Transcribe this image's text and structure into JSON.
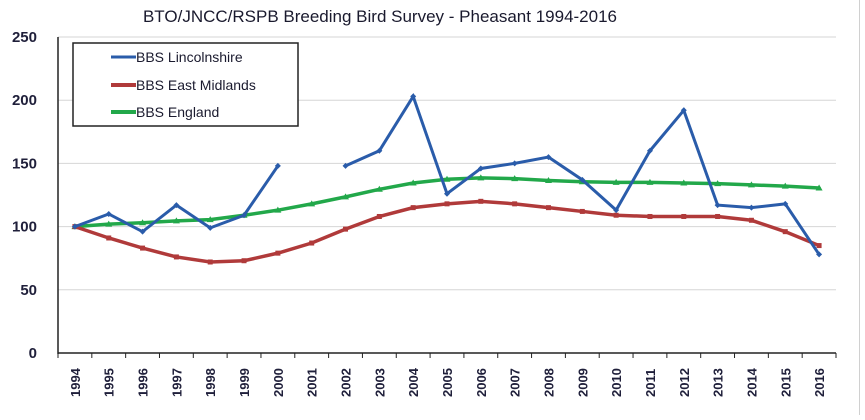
{
  "chart_data": {
    "type": "line",
    "title": "BTO/JNCC/RSPB Breeding Bird Survey - Pheasant 1994-2016",
    "xlabel": "",
    "ylabel": "",
    "ylim": [
      0,
      250
    ],
    "yticks": [
      0,
      50,
      100,
      150,
      200,
      250
    ],
    "grid": true,
    "legend_position": "top-left",
    "categories": [
      "1994",
      "1995",
      "1996",
      "1997",
      "1998",
      "1999",
      "2000",
      "2001",
      "2002",
      "2003",
      "2004",
      "2005",
      "2006",
      "2007",
      "2008",
      "2009",
      "2010",
      "2011",
      "2012",
      "2013",
      "2014",
      "2015",
      "2016"
    ],
    "series": [
      {
        "name": "BBS Lincolnshire",
        "color": "#2a5caa",
        "marker": "diamond",
        "values": [
          100,
          110,
          96,
          117,
          99,
          109,
          148,
          null,
          148,
          160,
          203,
          126,
          146,
          150,
          155,
          137,
          113,
          160,
          192,
          117,
          115,
          118,
          78
        ]
      },
      {
        "name": "BBS East Midlands",
        "color": "#b03a3a",
        "marker": "square",
        "values": [
          100,
          91,
          83,
          76,
          72,
          73,
          79,
          87,
          98,
          108,
          115,
          118,
          120,
          118,
          115,
          112,
          109,
          108,
          108,
          108,
          105,
          96,
          85
        ]
      },
      {
        "name": "BBS England",
        "color": "#22a84a",
        "marker": "triangle",
        "values": [
          100,
          102,
          103,
          104.5,
          105.5,
          109,
          113,
          118,
          123.5,
          129.5,
          134.5,
          137.5,
          138.5,
          138,
          136.5,
          135.5,
          135,
          135,
          134.5,
          134,
          133,
          132,
          130.5
        ]
      }
    ]
  }
}
